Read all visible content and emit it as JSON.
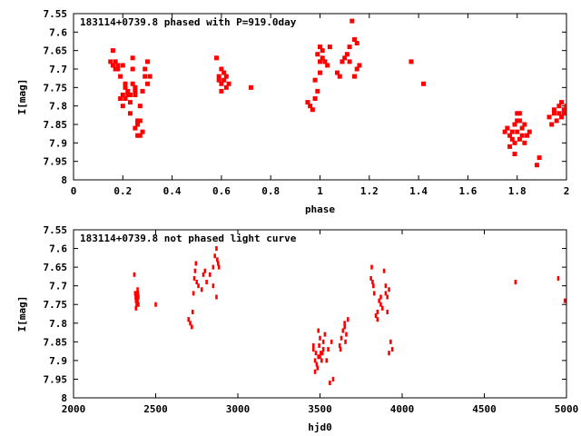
{
  "chart_data": [
    {
      "type": "scatter",
      "title": "183114+0739.8 phased with P=919.0day",
      "xlabel": "phase",
      "ylabel": "I[mag]",
      "xlim": [
        0,
        2
      ],
      "ylim": [
        7.55,
        8
      ],
      "y_inverted": true,
      "xticks": [
        "0",
        "0.2",
        "0.4",
        "0.6",
        "0.8",
        "1",
        "1.2",
        "1.4",
        "1.6",
        "1.8",
        "2"
      ],
      "yticks": [
        "7.55",
        "7.6",
        "7.65",
        "7.7",
        "7.75",
        "7.8",
        "7.85",
        "7.9",
        "7.95",
        "8"
      ],
      "grid": false,
      "marker_color": "#ff0000",
      "series": [
        {
          "x": [
            0.15,
            0.16,
            0.16,
            0.17,
            0.17,
            0.18,
            0.18,
            0.19,
            0.19,
            0.2,
            0.2,
            0.21,
            0.21,
            0.22,
            0.22,
            0.23,
            0.23,
            0.2,
            0.24,
            0.24,
            0.25,
            0.25,
            0.25,
            0.26,
            0.26,
            0.26,
            0.27,
            0.27,
            0.28,
            0.28,
            0.29,
            0.29,
            0.3,
            0.3,
            0.31,
            0.24,
            0.25,
            0.23,
            0.21,
            0.27,
            0.58,
            0.59,
            0.6,
            0.6,
            0.61,
            0.61,
            0.62,
            0.62,
            0.63,
            0.6,
            0.59,
            0.72,
            0.95,
            0.96,
            0.97,
            0.98,
            0.98,
            0.99,
            0.99,
            1.0,
            1.0,
            1.0,
            1.01,
            1.01,
            1.02,
            1.03,
            1.04,
            1.07,
            1.08,
            1.09,
            1.1,
            1.11,
            1.12,
            1.13,
            1.14,
            1.15,
            1.15,
            1.16,
            1.12,
            1.14,
            1.37,
            1.42,
            1.75,
            1.76,
            1.77,
            1.78,
            1.78,
            1.79,
            1.79,
            1.8,
            1.8,
            1.81,
            1.81,
            1.82,
            1.82,
            1.83,
            1.83,
            1.84,
            1.85,
            1.77,
            1.79,
            1.81,
            1.8,
            1.88,
            1.89,
            1.93,
            1.94,
            1.95,
            1.96,
            1.97,
            1.97,
            1.98,
            1.98,
            1.99,
            1.99,
            2.0,
            1.95
          ],
          "y": [
            7.68,
            7.65,
            7.69,
            7.68,
            7.7,
            7.69,
            7.7,
            7.72,
            7.78,
            7.77,
            7.8,
            7.75,
            7.78,
            7.76,
            7.77,
            7.77,
            7.79,
            7.69,
            7.67,
            7.7,
            7.75,
            7.77,
            7.76,
            7.84,
            7.85,
            7.88,
            7.84,
            7.88,
            7.76,
            7.87,
            7.7,
            7.72,
            7.68,
            7.74,
            7.72,
            7.74,
            7.86,
            7.82,
            7.74,
            7.8,
            7.67,
            7.72,
            7.7,
            7.74,
            7.73,
            7.71,
            7.72,
            7.75,
            7.74,
            7.76,
            7.73,
            7.75,
            7.79,
            7.8,
            7.81,
            7.78,
            7.73,
            7.76,
            7.66,
            7.64,
            7.68,
            7.71,
            7.67,
            7.65,
            7.68,
            7.69,
            7.64,
            7.71,
            7.72,
            7.68,
            7.67,
            7.66,
            7.64,
            7.57,
            7.62,
            7.63,
            7.7,
            7.69,
            7.68,
            7.72,
            7.68,
            7.74,
            7.87,
            7.86,
            7.88,
            7.87,
            7.89,
            7.85,
            7.9,
            7.84,
            7.87,
            7.82,
            7.89,
            7.88,
            7.86,
            7.85,
            7.9,
            7.88,
            7.87,
            7.91,
            7.93,
            7.84,
            7.82,
            7.96,
            7.94,
            7.83,
            7.85,
            7.81,
            7.84,
            7.82,
            7.8,
            7.83,
            7.79,
            7.82,
            7.81,
            7.8,
            7.82
          ]
        }
      ]
    },
    {
      "type": "scatter",
      "title": "183114+0739.8 not phased light curve",
      "xlabel": "hjd0",
      "ylabel": "I[mag]",
      "xlim": [
        2000,
        5000
      ],
      "ylim": [
        7.55,
        8
      ],
      "y_inverted": true,
      "xticks": [
        "2000",
        "2500",
        "3000",
        "3500",
        "4000",
        "4500",
        "5000"
      ],
      "yticks": [
        "7.55",
        "7.6",
        "7.65",
        "7.7",
        "7.75",
        "7.8",
        "7.85",
        "7.9",
        "7.95",
        "8"
      ],
      "grid": false,
      "marker_color": "#ff0000",
      "series": [
        {
          "x": [
            2370,
            2375,
            2380,
            2383,
            2386,
            2388,
            2390,
            2392,
            2395,
            2380,
            2385,
            2390,
            2395,
            2378,
            2384,
            2500,
            2700,
            2710,
            2720,
            2725,
            2730,
            2735,
            2740,
            2745,
            2750,
            2760,
            2780,
            2790,
            2800,
            2810,
            2830,
            2850,
            2860,
            2870,
            2875,
            2880,
            2885,
            2870,
            2850,
            3460,
            3470,
            3475,
            3480,
            3485,
            3490,
            3495,
            3500,
            3505,
            3510,
            3515,
            3520,
            3530,
            3540,
            3550,
            3560,
            3470,
            3490,
            3500,
            3520,
            3460,
            3570,
            3580,
            3620,
            3630,
            3640,
            3650,
            3660,
            3670,
            3625,
            3650,
            3655,
            3810,
            3815,
            3820,
            3825,
            3830,
            3840,
            3850,
            3860,
            3870,
            3880,
            3890,
            3900,
            3910,
            3920,
            3930,
            3940,
            3850,
            3870,
            3900,
            3910,
            3920,
            4690,
            4950,
            4990
          ],
          "y": [
            7.67,
            7.72,
            7.74,
            7.73,
            7.72,
            7.73,
            7.74,
            7.72,
            7.75,
            7.76,
            7.74,
            7.71,
            7.73,
            7.73,
            7.75,
            7.75,
            7.79,
            7.8,
            7.81,
            7.77,
            7.72,
            7.68,
            7.66,
            7.64,
            7.69,
            7.7,
            7.71,
            7.67,
            7.66,
            7.69,
            7.67,
            7.65,
            7.62,
            7.6,
            7.63,
            7.64,
            7.65,
            7.73,
            7.7,
            7.87,
            7.9,
            7.88,
            7.91,
            7.92,
            7.89,
            7.86,
            7.84,
            7.88,
            7.9,
            7.88,
            7.85,
            7.83,
            7.9,
            7.87,
            7.96,
            7.93,
            7.82,
            7.89,
            7.87,
            7.86,
            7.85,
            7.95,
            7.86,
            7.84,
            7.82,
            7.8,
            7.83,
            7.79,
            7.87,
            7.81,
            7.85,
            7.68,
            7.65,
            7.69,
            7.7,
            7.72,
            7.78,
            7.77,
            7.74,
            7.75,
            7.76,
            7.66,
            7.7,
            7.73,
            7.71,
            7.85,
            7.87,
            7.79,
            7.73,
            7.72,
            7.77,
            7.88,
            7.69,
            7.68,
            7.74
          ]
        }
      ]
    }
  ]
}
